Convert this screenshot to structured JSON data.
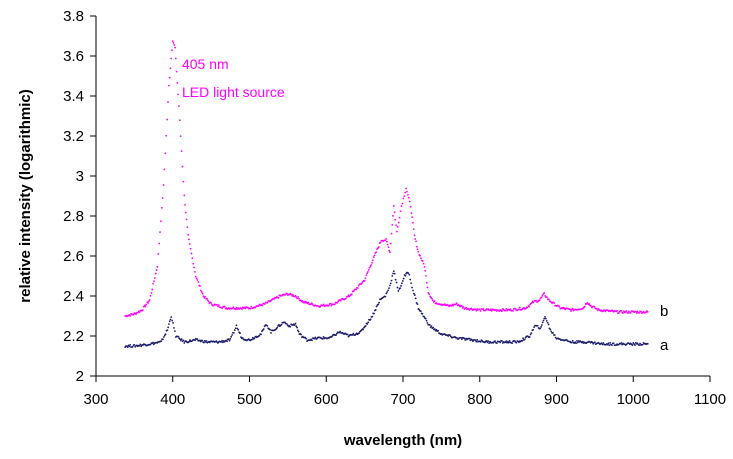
{
  "chart_data": {
    "type": "scatter",
    "title": "",
    "xlabel": "wavelength (nm)",
    "ylabel": "relative intensity (logarithmic)",
    "xlim": [
      300,
      1100
    ],
    "ylim": [
      2,
      3.8
    ],
    "xticks": [
      300,
      400,
      500,
      600,
      700,
      800,
      900,
      1000,
      1100
    ],
    "yticks": [
      2,
      2.2,
      2.4,
      2.6,
      2.8,
      3,
      3.2,
      3.4,
      3.6,
      3.8
    ],
    "xtick_labels": [
      "300",
      "400",
      "500",
      "600",
      "700",
      "800",
      "900",
      "1000",
      "1100"
    ],
    "ytick_labels": [
      "2",
      "2.2",
      "2.4",
      "2.6",
      "2.8",
      "3",
      "3.2",
      "3.4",
      "3.6",
      "3.8"
    ],
    "grid": false,
    "annotations": [
      {
        "text_lines": [
          "405 nm",
          "LED light source"
        ],
        "color": "#ff00ff"
      }
    ],
    "series": [
      {
        "name": "b",
        "color": "#ff00ff",
        "points": [
          [
            338,
            2.3
          ],
          [
            350,
            2.31
          ],
          [
            360,
            2.33
          ],
          [
            370,
            2.38
          ],
          [
            380,
            2.55
          ],
          [
            388,
            2.95
          ],
          [
            395,
            3.45
          ],
          [
            400,
            3.68
          ],
          [
            403,
            3.64
          ],
          [
            408,
            3.35
          ],
          [
            415,
            2.9
          ],
          [
            420,
            2.7
          ],
          [
            430,
            2.5
          ],
          [
            440,
            2.4
          ],
          [
            450,
            2.36
          ],
          [
            470,
            2.34
          ],
          [
            500,
            2.34
          ],
          [
            520,
            2.36
          ],
          [
            530,
            2.38
          ],
          [
            540,
            2.4
          ],
          [
            550,
            2.41
          ],
          [
            560,
            2.4
          ],
          [
            570,
            2.37
          ],
          [
            590,
            2.35
          ],
          [
            610,
            2.36
          ],
          [
            630,
            2.4
          ],
          [
            650,
            2.48
          ],
          [
            665,
            2.62
          ],
          [
            672,
            2.68
          ],
          [
            678,
            2.68
          ],
          [
            683,
            2.62
          ],
          [
            688,
            2.85
          ],
          [
            692,
            2.72
          ],
          [
            698,
            2.85
          ],
          [
            704,
            2.94
          ],
          [
            710,
            2.85
          ],
          [
            715,
            2.7
          ],
          [
            720,
            2.62
          ],
          [
            728,
            2.55
          ],
          [
            733,
            2.42
          ],
          [
            740,
            2.37
          ],
          [
            750,
            2.36
          ],
          [
            760,
            2.35
          ],
          [
            770,
            2.36
          ],
          [
            780,
            2.34
          ],
          [
            800,
            2.33
          ],
          [
            820,
            2.33
          ],
          [
            840,
            2.33
          ],
          [
            860,
            2.34
          ],
          [
            870,
            2.37
          ],
          [
            878,
            2.38
          ],
          [
            884,
            2.41
          ],
          [
            890,
            2.38
          ],
          [
            897,
            2.36
          ],
          [
            905,
            2.34
          ],
          [
            920,
            2.33
          ],
          [
            935,
            2.34
          ],
          [
            940,
            2.37
          ],
          [
            945,
            2.35
          ],
          [
            955,
            2.33
          ],
          [
            980,
            2.32
          ],
          [
            1000,
            2.32
          ],
          [
            1020,
            2.32
          ]
        ]
      },
      {
        "name": "a",
        "color": "#1c1c6e",
        "points": [
          [
            338,
            2.15
          ],
          [
            350,
            2.15
          ],
          [
            370,
            2.16
          ],
          [
            385,
            2.17
          ],
          [
            393,
            2.23
          ],
          [
            398,
            2.3
          ],
          [
            404,
            2.2
          ],
          [
            415,
            2.17
          ],
          [
            430,
            2.18
          ],
          [
            445,
            2.17
          ],
          [
            460,
            2.17
          ],
          [
            475,
            2.18
          ],
          [
            483,
            2.25
          ],
          [
            490,
            2.19
          ],
          [
            500,
            2.18
          ],
          [
            515,
            2.21
          ],
          [
            522,
            2.26
          ],
          [
            528,
            2.22
          ],
          [
            535,
            2.24
          ],
          [
            545,
            2.27
          ],
          [
            552,
            2.25
          ],
          [
            560,
            2.26
          ],
          [
            565,
            2.21
          ],
          [
            575,
            2.18
          ],
          [
            590,
            2.19
          ],
          [
            605,
            2.19
          ],
          [
            617,
            2.22
          ],
          [
            630,
            2.2
          ],
          [
            645,
            2.22
          ],
          [
            660,
            2.3
          ],
          [
            670,
            2.38
          ],
          [
            677,
            2.4
          ],
          [
            683,
            2.45
          ],
          [
            688,
            2.53
          ],
          [
            694,
            2.42
          ],
          [
            702,
            2.5
          ],
          [
            707,
            2.52
          ],
          [
            713,
            2.43
          ],
          [
            720,
            2.34
          ],
          [
            735,
            2.25
          ],
          [
            750,
            2.21
          ],
          [
            770,
            2.19
          ],
          [
            790,
            2.18
          ],
          [
            810,
            2.17
          ],
          [
            830,
            2.17
          ],
          [
            850,
            2.17
          ],
          [
            865,
            2.2
          ],
          [
            872,
            2.25
          ],
          [
            880,
            2.24
          ],
          [
            885,
            2.3
          ],
          [
            892,
            2.23
          ],
          [
            900,
            2.19
          ],
          [
            920,
            2.17
          ],
          [
            940,
            2.17
          ],
          [
            960,
            2.16
          ],
          [
            980,
            2.16
          ],
          [
            1000,
            2.16
          ],
          [
            1020,
            2.16
          ]
        ]
      }
    ]
  }
}
